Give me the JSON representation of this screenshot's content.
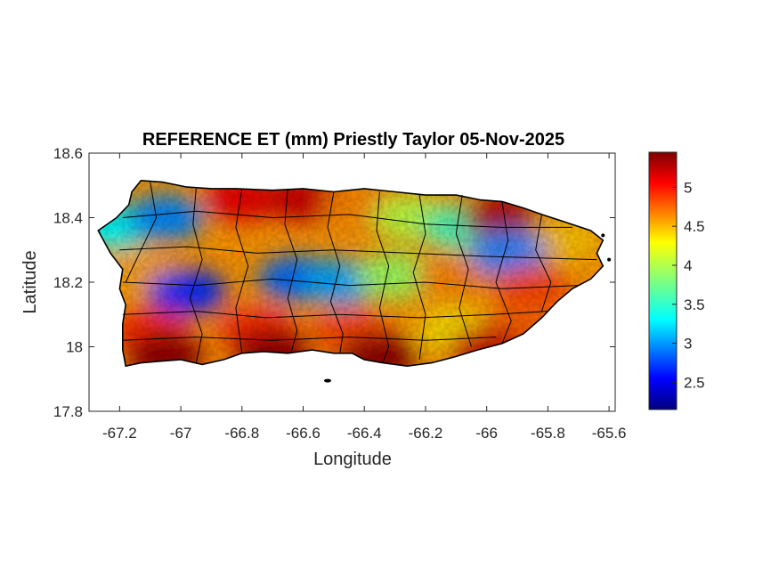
{
  "chart_data": {
    "type": "heatmap",
    "title": "REFERENCE ET (mm) Priestly Taylor 05-Nov-2025",
    "xlabel": "Longitude",
    "ylabel": "Latitude",
    "xlim": [
      -67.3,
      -65.58
    ],
    "ylim": [
      17.8,
      18.6
    ],
    "xticks": [
      -67.2,
      -67,
      -66.8,
      -66.6,
      -66.4,
      -66.2,
      -66,
      -65.8,
      -65.6
    ],
    "yticks": [
      17.8,
      18,
      18.2,
      18.4,
      18.6
    ],
    "xtick_labels": [
      "-67.2",
      "-67",
      "-66.8",
      "-66.6",
      "-66.4",
      "-66.2",
      "-66",
      "-65.8",
      "-65.6"
    ],
    "ytick_labels": [
      "17.8",
      "18",
      "18.2",
      "18.4",
      "18.6"
    ],
    "colorbar": {
      "colormap": "jet",
      "range": [
        2.15,
        5.45
      ],
      "ticks": [
        2.5,
        3,
        3.5,
        4,
        4.5,
        5
      ],
      "tick_labels": [
        "2.5",
        "3",
        "3.5",
        "4",
        "4.5",
        "5"
      ]
    },
    "grid": false,
    "region": "Puerto Rico",
    "zones": [
      {
        "lon": -67.22,
        "lat": 18.37,
        "value": 3.4
      },
      {
        "lon": -67.05,
        "lat": 18.4,
        "value": 3.0
      },
      {
        "lon": -66.8,
        "lat": 18.46,
        "value": 5.1
      },
      {
        "lon": -66.6,
        "lat": 18.46,
        "value": 5.2
      },
      {
        "lon": -66.4,
        "lat": 18.44,
        "value": 4.6
      },
      {
        "lon": -66.25,
        "lat": 18.4,
        "value": 4.0
      },
      {
        "lon": -66.08,
        "lat": 18.37,
        "value": 3.6
      },
      {
        "lon": -65.95,
        "lat": 18.4,
        "value": 5.3
      },
      {
        "lon": -65.75,
        "lat": 18.33,
        "value": 4.4
      },
      {
        "lon": -67.12,
        "lat": 18.22,
        "value": 4.5
      },
      {
        "lon": -66.98,
        "lat": 18.17,
        "value": 2.7
      },
      {
        "lon": -66.62,
        "lat": 18.21,
        "value": 2.9
      },
      {
        "lon": -66.48,
        "lat": 18.2,
        "value": 3.1
      },
      {
        "lon": -66.3,
        "lat": 18.22,
        "value": 3.9
      },
      {
        "lon": -66.1,
        "lat": 18.22,
        "value": 4.6
      },
      {
        "lon": -65.93,
        "lat": 18.29,
        "value": 3.0
      },
      {
        "lon": -65.85,
        "lat": 18.18,
        "value": 4.8
      },
      {
        "lon": -67.1,
        "lat": 18.05,
        "value": 4.9
      },
      {
        "lon": -66.75,
        "lat": 18.05,
        "value": 4.9
      },
      {
        "lon": -66.45,
        "lat": 18.05,
        "value": 4.8
      },
      {
        "lon": -66.1,
        "lat": 18.05,
        "value": 4.3
      },
      {
        "lon": -65.9,
        "lat": 18.05,
        "value": 4.7
      },
      {
        "lon": -67.05,
        "lat": 17.97,
        "value": 5.4
      },
      {
        "lon": -66.7,
        "lat": 17.98,
        "value": 5.4
      },
      {
        "lon": -66.35,
        "lat": 17.97,
        "value": 5.4
      },
      {
        "lon": -66.0,
        "lat": 17.99,
        "value": 5.2
      }
    ]
  }
}
